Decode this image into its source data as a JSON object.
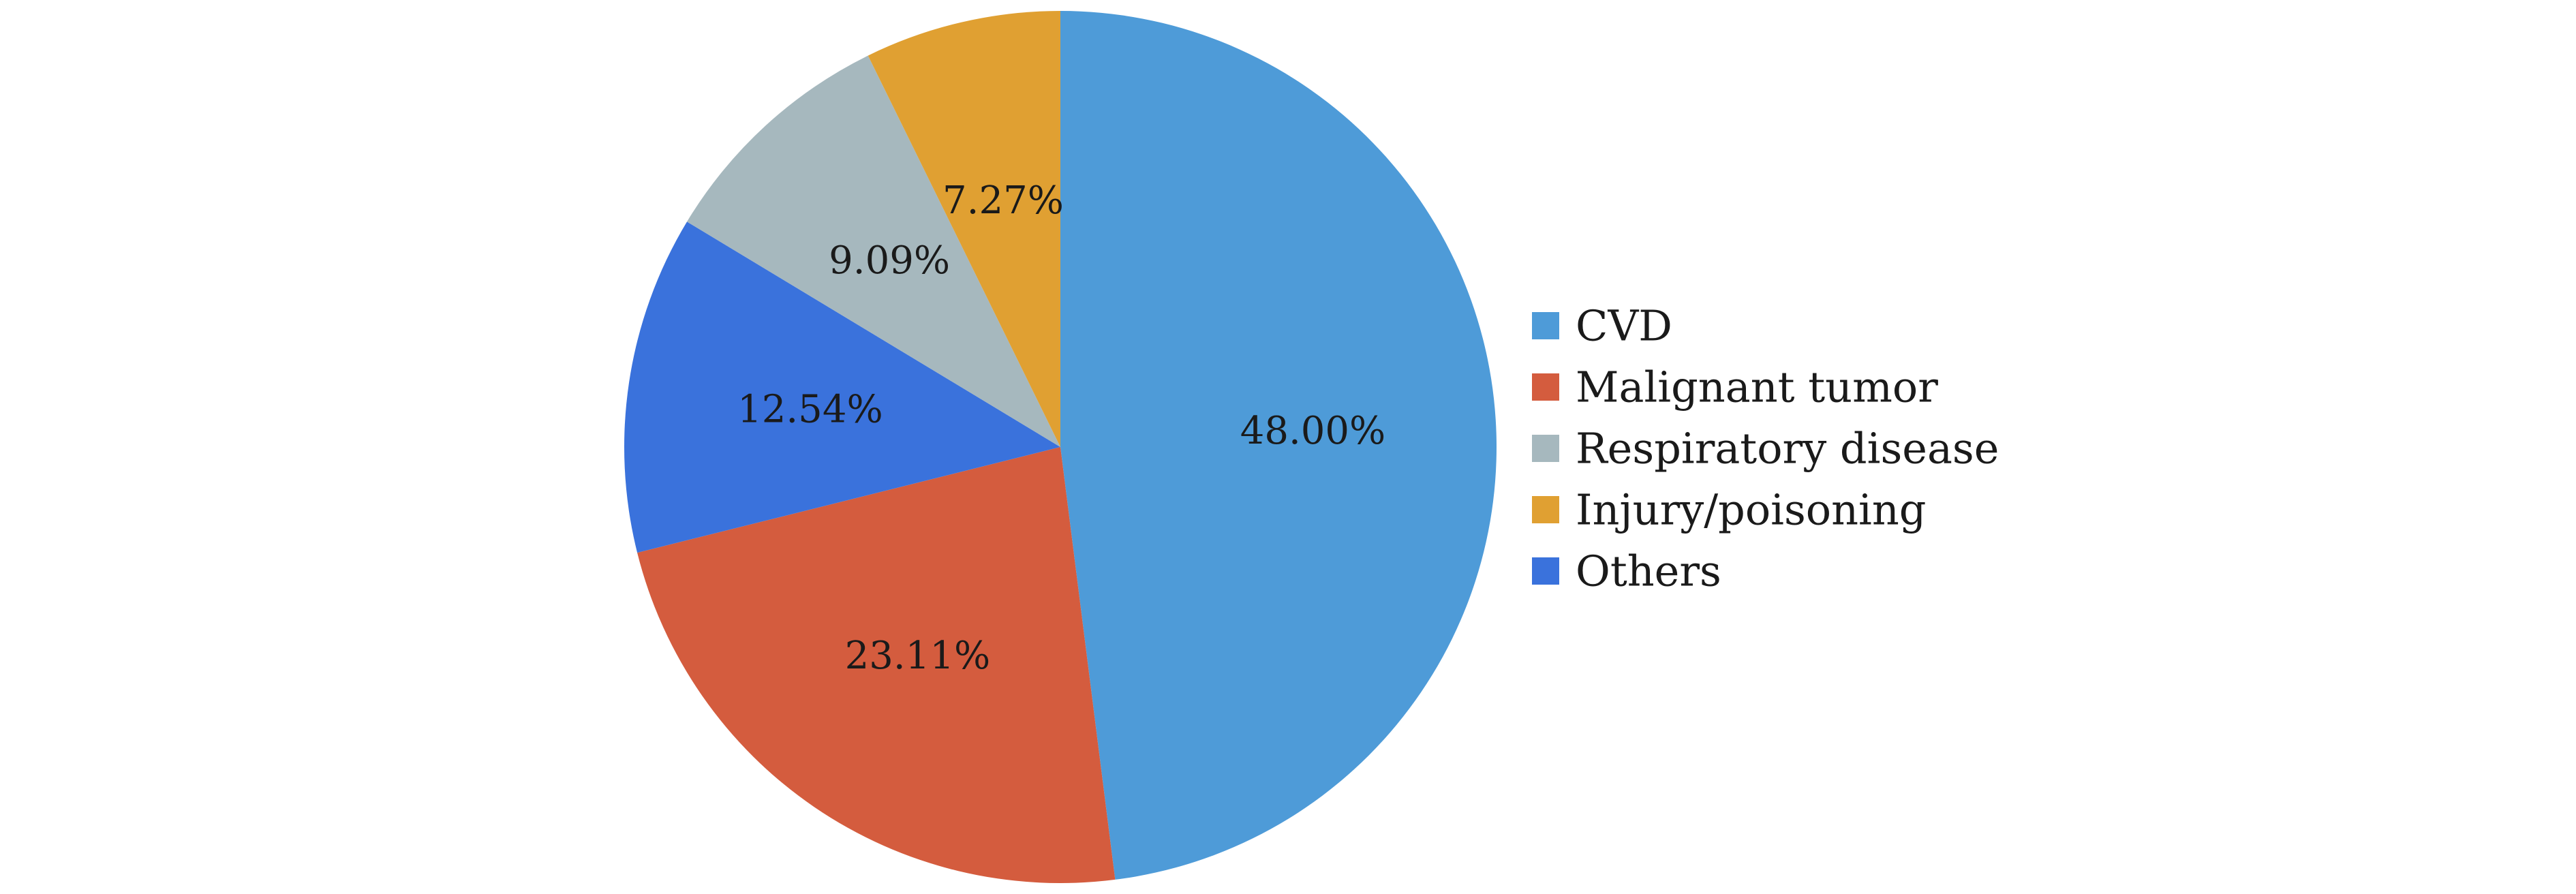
{
  "chart_data": {
    "type": "pie",
    "title": "",
    "legend_position": "right",
    "start": "12 o'clock",
    "direction": "clockwise",
    "slices": [
      {
        "name": "CVD",
        "value": 48.0,
        "label": "48.00%",
        "color": "#4E9BD8"
      },
      {
        "name": "Malignant tumor",
        "value": 23.11,
        "label": "23.11%",
        "color": "#D45C3E"
      },
      {
        "name": "Others",
        "value": 12.54,
        "label": "12.54%",
        "color": "#3A72DC"
      },
      {
        "name": "Respiratory disease",
        "value": 9.09,
        "label": "9.09%",
        "color": "#A6B8BE"
      },
      {
        "name": "Injury/poisoning",
        "value": 7.27,
        "label": "7.27%",
        "color": "#E0A032"
      }
    ],
    "legend": [
      {
        "name": "CVD",
        "color": "#4E9BD8"
      },
      {
        "name": "Malignant tumor",
        "color": "#D45C3E"
      },
      {
        "name": "Respiratory disease",
        "color": "#A6B8BE"
      },
      {
        "name": "Injury/poisoning",
        "color": "#E0A032"
      },
      {
        "name": "Others",
        "color": "#3A72DC"
      }
    ]
  }
}
